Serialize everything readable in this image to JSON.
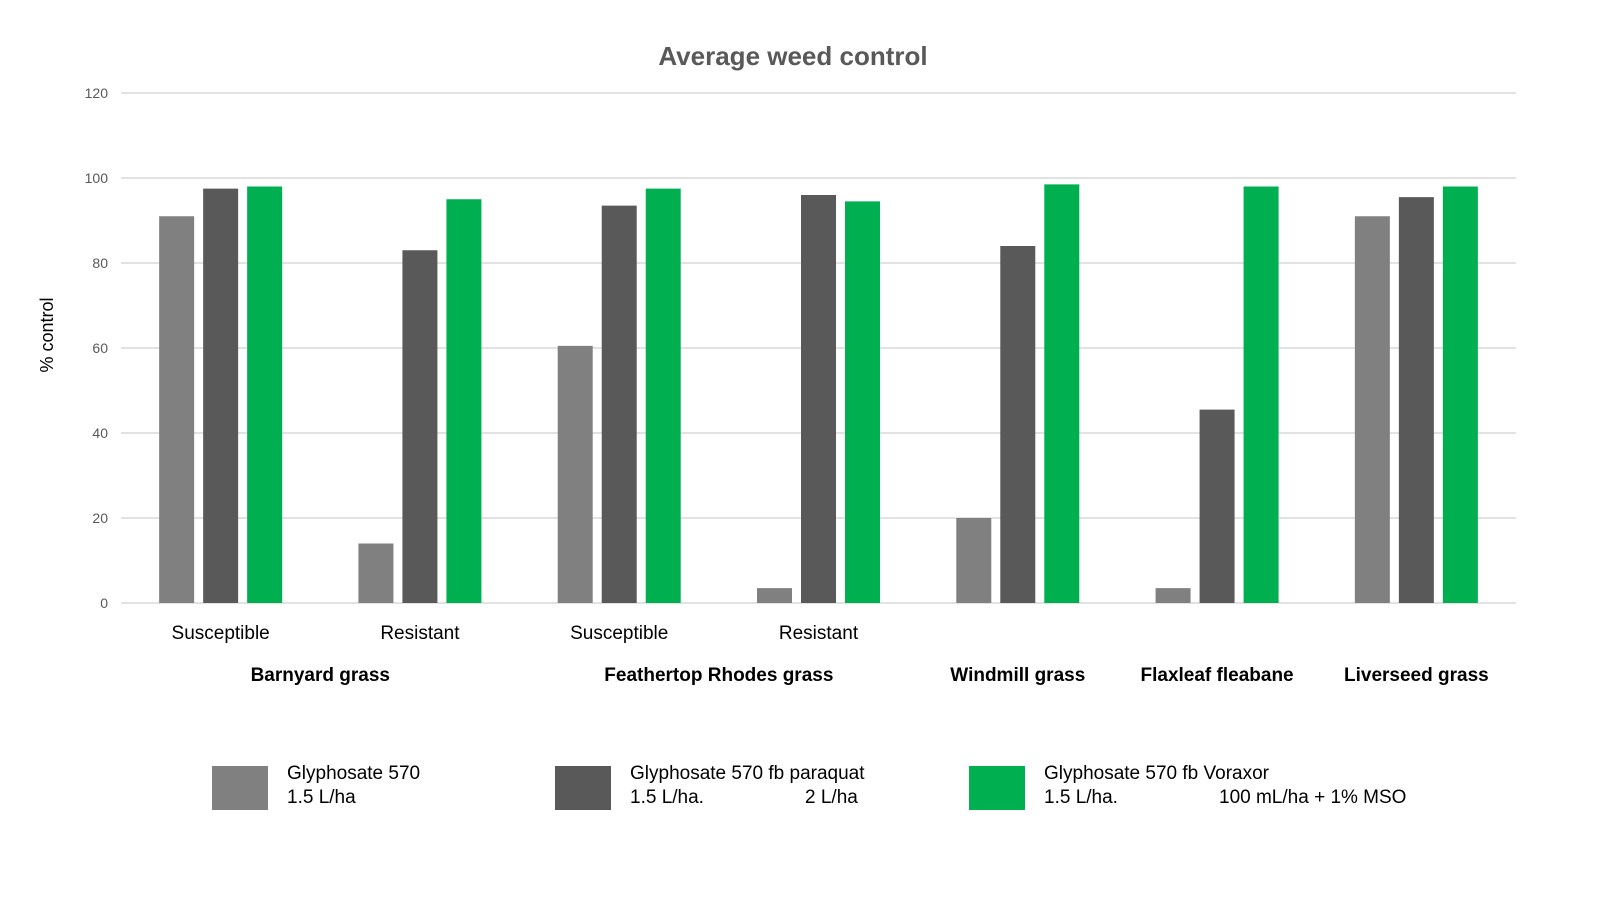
{
  "chart_data": {
    "type": "bar",
    "title": "Average weed control",
    "ylabel": "% control",
    "xlabel": "",
    "ylim": [
      0,
      120
    ],
    "yticks": [
      0,
      20,
      40,
      60,
      80,
      100,
      120
    ],
    "grid": true,
    "legend_position": "bottom",
    "categories": [
      {
        "sub": "Susceptible",
        "group": "Barnyard grass"
      },
      {
        "sub": "Resistant",
        "group": "Barnyard grass"
      },
      {
        "sub": "Susceptible",
        "group": "Feathertop Rhodes grass"
      },
      {
        "sub": "Resistant",
        "group": "Feathertop Rhodes grass"
      },
      {
        "sub": "",
        "group": "Windmill grass"
      },
      {
        "sub": "",
        "group": "Flaxleaf fleabane"
      },
      {
        "sub": "",
        "group": "Liverseed grass"
      }
    ],
    "groups": [
      {
        "label": "Barnyard grass",
        "from": 0,
        "to": 1
      },
      {
        "label": "Feathertop Rhodes grass",
        "from": 2,
        "to": 3
      },
      {
        "label": "Windmill grass",
        "from": 4,
        "to": 4
      },
      {
        "label": "Flaxleaf fleabane",
        "from": 5,
        "to": 5
      },
      {
        "label": "Liverseed grass",
        "from": 6,
        "to": 6
      }
    ],
    "series": [
      {
        "line1": "Glyphosate 570",
        "line2a": "1.5 L/ha",
        "line2b": "",
        "color": "#808080",
        "values": [
          91,
          14,
          60.5,
          3.5,
          20,
          3.5,
          91
        ]
      },
      {
        "line1": "Glyphosate 570 fb paraquat",
        "line2a": "1.5 L/ha.",
        "line2b": "2 L/ha",
        "color": "#595959",
        "values": [
          97.5,
          83,
          93.5,
          96,
          84,
          45.5,
          95.5
        ]
      },
      {
        "line1": "Glyphosate 570 fb Voraxor",
        "line2a": "1.5 L/ha.",
        "line2b": "100 mL/ha + 1% MSO",
        "color": "#00b050",
        "values": [
          98,
          95,
          97.5,
          94.5,
          98.5,
          98,
          98
        ]
      }
    ]
  }
}
